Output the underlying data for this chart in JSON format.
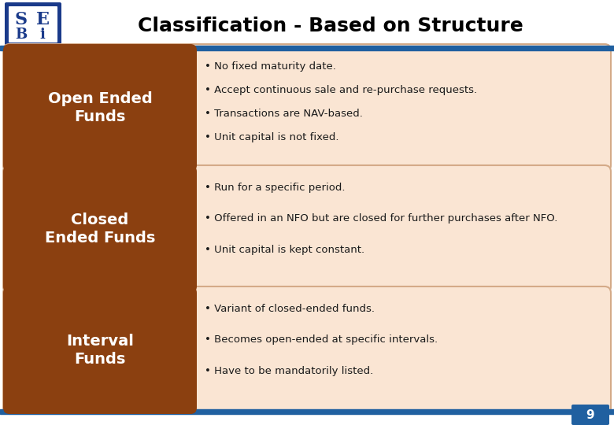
{
  "title": "Classification - Based on Structure",
  "title_fontsize": 18,
  "background_color": "#ffffff",
  "header_line_color": "#2060a0",
  "footer_line_color": "#2060a0",
  "page_number": "9",
  "left_box_color": "#8B4010",
  "right_box_color": "#FAE5D3",
  "right_box_edge_color": "#d4aa88",
  "left_text_color": "#ffffff",
  "right_text_color": "#1a1a1a",
  "logo_bg": "#1a3a8a",
  "logo_fg": "#ffffff",
  "rows": [
    {
      "left_title": "Open Ended\nFunds",
      "bullets": [
        "No fixed maturity date.",
        "Accept continuous sale and re-purchase requests.",
        "Transactions are NAV-based.",
        "Unit capital is not fixed."
      ]
    },
    {
      "left_title": "Closed\nEnded Funds",
      "bullets": [
        "Run for a specific period.",
        "Offered in an NFO but are closed for further purchases after NFO.",
        "Unit capital is kept constant."
      ]
    },
    {
      "left_title": "Interval\nFunds",
      "bullets": [
        "Variant of closed-ended funds.",
        "Becomes open-ended at specific intervals.",
        "Have to be mandatorily listed."
      ]
    }
  ]
}
